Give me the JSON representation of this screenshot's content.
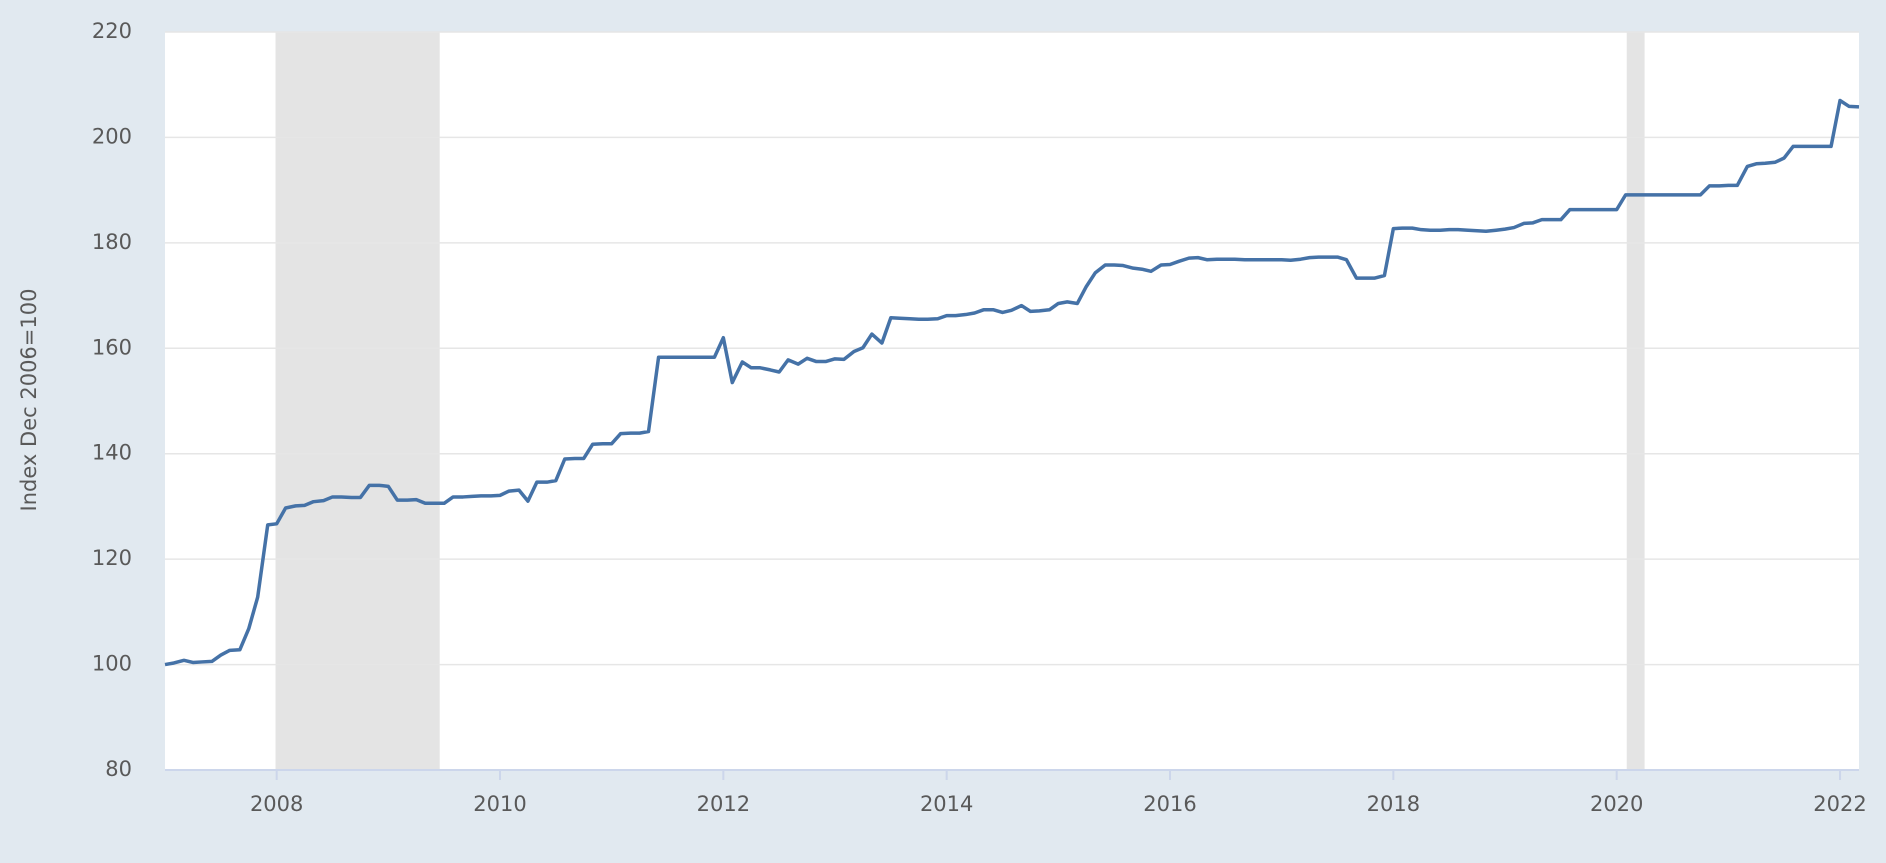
{
  "chart_data": {
    "type": "line",
    "y_label": "Index Dec 2006=100",
    "color": "#4572a7",
    "xlim": [
      2007,
      2022.17
    ],
    "ylim": [
      80,
      220
    ],
    "xticks": [
      2008,
      2010,
      2012,
      2014,
      2016,
      2018,
      2020,
      2022
    ],
    "yticks": [
      80,
      100,
      120,
      140,
      160,
      180,
      200,
      220
    ],
    "grid": true,
    "recessions": [
      [
        2007.99,
        2009.46
      ],
      [
        2020.09,
        2020.25
      ]
    ],
    "x": [
      2007,
      2007.08,
      2007.17,
      2007.25,
      2007.33,
      2007.42,
      2007.5,
      2007.58,
      2007.67,
      2007.75,
      2007.83,
      2007.92,
      2008,
      2008.08,
      2008.17,
      2008.25,
      2008.33,
      2008.42,
      2008.5,
      2008.58,
      2008.67,
      2008.75,
      2008.83,
      2008.92,
      2009,
      2009.08,
      2009.17,
      2009.25,
      2009.33,
      2009.42,
      2009.5,
      2009.58,
      2009.67,
      2009.75,
      2009.83,
      2009.92,
      2010,
      2010.08,
      2010.17,
      2010.25,
      2010.33,
      2010.42,
      2010.5,
      2010.58,
      2010.67,
      2010.75,
      2010.83,
      2010.92,
      2011,
      2011.08,
      2011.17,
      2011.25,
      2011.33,
      2011.42,
      2011.5,
      2011.58,
      2011.67,
      2011.75,
      2011.83,
      2011.92,
      2012,
      2012.08,
      2012.17,
      2012.25,
      2012.33,
      2012.42,
      2012.5,
      2012.58,
      2012.67,
      2012.75,
      2012.83,
      2012.92,
      2013,
      2013.08,
      2013.17,
      2013.25,
      2013.33,
      2013.42,
      2013.5,
      2013.58,
      2013.67,
      2013.75,
      2013.83,
      2013.92,
      2014,
      2014.08,
      2014.17,
      2014.25,
      2014.33,
      2014.42,
      2014.5,
      2014.58,
      2014.67,
      2014.75,
      2014.83,
      2014.92,
      2015,
      2015.08,
      2015.17,
      2015.25,
      2015.33,
      2015.42,
      2015.5,
      2015.58,
      2015.67,
      2015.75,
      2015.83,
      2015.92,
      2016,
      2016.08,
      2016.17,
      2016.25,
      2016.33,
      2016.42,
      2016.5,
      2016.58,
      2016.67,
      2016.75,
      2016.83,
      2016.92,
      2017,
      2017.08,
      2017.17,
      2017.25,
      2017.33,
      2017.42,
      2017.5,
      2017.58,
      2017.67,
      2017.75,
      2017.83,
      2017.92,
      2018,
      2018.08,
      2018.17,
      2018.25,
      2018.33,
      2018.42,
      2018.5,
      2018.58,
      2018.67,
      2018.75,
      2018.83,
      2018.92,
      2019,
      2019.08,
      2019.17,
      2019.25,
      2019.33,
      2019.42,
      2019.5,
      2019.58,
      2019.67,
      2019.75,
      2019.83,
      2019.92,
      2020,
      2020.08,
      2020.17,
      2020.25,
      2020.33,
      2020.42,
      2020.5,
      2020.58,
      2020.67,
      2020.75,
      2020.83,
      2020.92,
      2021,
      2021.08,
      2021.17,
      2021.25,
      2021.33,
      2021.42,
      2021.5,
      2021.58,
      2021.67,
      2021.75,
      2021.83,
      2021.92,
      2022,
      2022.08,
      2022.17
    ],
    "values": [
      100.0,
      100.3,
      100.8,
      100.4,
      100.5,
      100.6,
      101.8,
      102.7,
      102.8,
      106.8,
      112.8,
      126.5,
      126.7,
      129.7,
      130.1,
      130.2,
      130.9,
      131.1,
      131.8,
      131.8,
      131.7,
      131.7,
      134.0,
      134.0,
      133.8,
      131.2,
      131.2,
      131.3,
      130.6,
      130.6,
      130.6,
      131.8,
      131.8,
      131.9,
      132.0,
      132.0,
      132.1,
      132.9,
      133.1,
      131.0,
      134.6,
      134.6,
      134.9,
      139.0,
      139.1,
      139.1,
      141.8,
      141.9,
      141.9,
      143.8,
      143.9,
      143.9,
      144.2,
      158.3,
      158.3,
      158.3,
      158.3,
      158.3,
      158.3,
      158.3,
      162.0,
      153.5,
      157.4,
      156.3,
      156.3,
      155.9,
      155.5,
      157.8,
      157.0,
      158.1,
      157.5,
      157.5,
      158.0,
      157.9,
      159.4,
      160.1,
      162.7,
      161.0,
      165.8,
      165.7,
      165.6,
      165.5,
      165.5,
      165.6,
      166.2,
      166.2,
      166.4,
      166.7,
      167.3,
      167.3,
      166.8,
      167.2,
      168.1,
      167.0,
      167.1,
      167.3,
      168.5,
      168.8,
      168.5,
      171.7,
      174.3,
      175.8,
      175.8,
      175.7,
      175.2,
      175.0,
      174.6,
      175.8,
      175.9,
      176.5,
      177.1,
      177.2,
      176.8,
      176.9,
      176.9,
      176.9,
      176.8,
      176.8,
      176.8,
      176.8,
      176.8,
      176.7,
      176.9,
      177.2,
      177.3,
      177.3,
      177.3,
      176.8,
      173.3,
      173.3,
      173.3,
      173.8,
      182.7,
      182.8,
      182.8,
      182.5,
      182.4,
      182.4,
      182.5,
      182.5,
      182.4,
      182.3,
      182.2,
      182.4,
      182.6,
      182.9,
      183.7,
      183.8,
      184.4,
      184.4,
      184.4,
      186.3,
      186.3,
      186.3,
      186.3,
      186.3,
      186.3,
      189.1,
      189.1,
      189.1,
      189.1,
      189.1,
      189.1,
      189.1,
      189.1,
      189.1,
      190.8,
      190.8,
      190.9,
      190.9,
      194.5,
      195.0,
      195.1,
      195.3,
      196.1,
      198.3,
      198.3,
      198.3,
      198.3,
      198.3,
      207.0,
      205.9,
      205.8
    ]
  }
}
